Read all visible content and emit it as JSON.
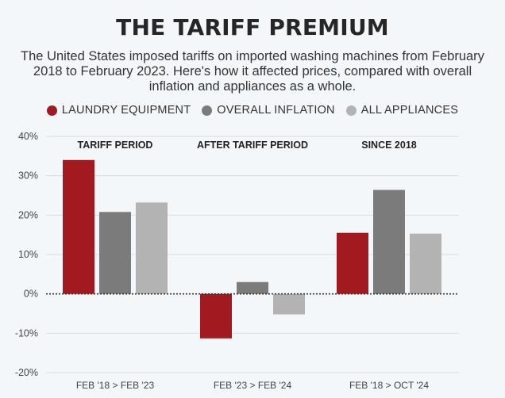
{
  "title": "THE TARIFF PREMIUM",
  "subtitle": "The United States imposed tariffs on imported washing machines from February 2018 to February 2023. Here's how it affected prices, compared with overall inflation and appliances as a whole.",
  "legend": [
    {
      "label": "LAUNDRY EQUIPMENT",
      "color": "#a11a1f"
    },
    {
      "label": "OVERALL INFLATION",
      "color": "#7b7b7b"
    },
    {
      "label": "ALL APPLIANCES",
      "color": "#b3b3b3"
    }
  ],
  "chart_data": {
    "type": "bar",
    "group_labels": [
      "TARIFF PERIOD",
      "AFTER TARIFF PERIOD",
      "SINCE 2018"
    ],
    "categories": [
      "FEB '18 > FEB '23",
      "FEB '23 > FEB '24",
      "FEB '18 > OCT '24"
    ],
    "series": [
      {
        "name": "LAUNDRY EQUIPMENT",
        "color": "#a11a1f",
        "values": [
          34,
          -11.3,
          15.5
        ]
      },
      {
        "name": "OVERALL INFLATION",
        "color": "#7b7b7b",
        "values": [
          20.8,
          3,
          26.4
        ]
      },
      {
        "name": "ALL APPLIANCES",
        "color": "#b3b3b3",
        "values": [
          23.2,
          -5.2,
          15.3
        ]
      }
    ],
    "ylim": [
      -20,
      40
    ],
    "yticks": [
      -20,
      -10,
      0,
      10,
      20,
      30,
      40
    ],
    "ytick_labels": [
      "-20%",
      "-10%",
      "0%",
      "10%",
      "20%",
      "30%",
      "40%"
    ],
    "grid": true,
    "legend_position": "top-center"
  }
}
